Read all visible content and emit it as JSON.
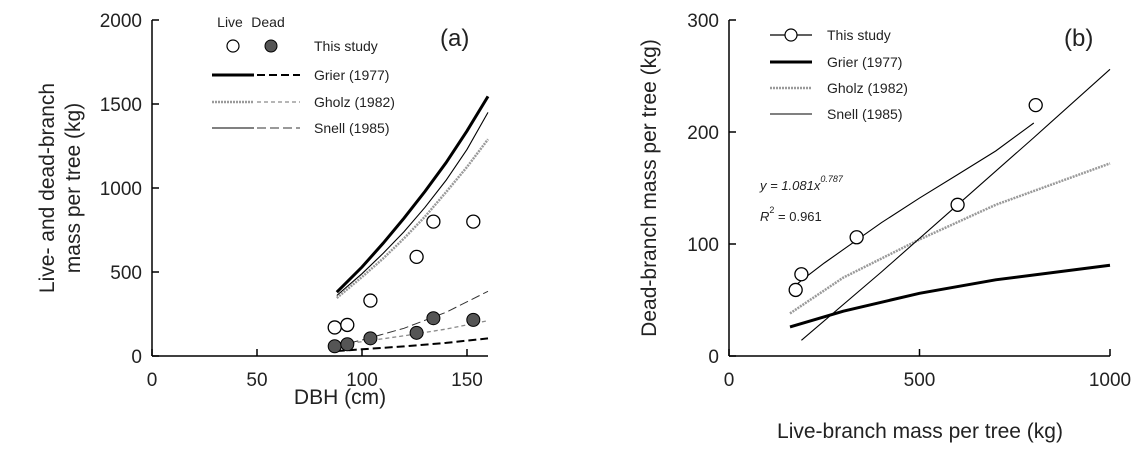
{
  "chart_data": [
    {
      "type": "scatter",
      "panel_label": "(a)",
      "xlabel": "DBH (cm)",
      "ylabel": [
        "Live- and dead-branch",
        "mass per tree (kg)"
      ],
      "xlim": [
        0,
        160
      ],
      "ylim": [
        0,
        2000
      ],
      "x_ticks": [
        "0",
        "50",
        "100",
        "150"
      ],
      "x_tick_values": [
        0,
        50,
        100,
        150
      ],
      "y_ticks": [
        "0",
        "500",
        "1000",
        "1500",
        "2000"
      ],
      "y_tick_values": [
        0,
        500,
        1000,
        1500,
        2000
      ],
      "legend": {
        "placement": "top-right",
        "col_headers": [
          "Live",
          "Dead"
        ],
        "entries": [
          {
            "label": "This study",
            "style": "markers"
          },
          {
            "label": "Grier (1977)",
            "style": "thick-solid / thick-dash"
          },
          {
            "label": "Gholz (1982)",
            "style": "dotted-gray / short-dash-gray"
          },
          {
            "label": "Snell (1985)",
            "style": "thin-solid / long-dash"
          }
        ]
      },
      "series": [
        {
          "name": "This study",
          "status": "Live",
          "marker": "open-circle",
          "x": [
            87,
            93,
            104,
            126,
            134,
            153
          ],
          "y": [
            170,
            185,
            330,
            590,
            800,
            800
          ]
        },
        {
          "name": "This study",
          "status": "Dead",
          "marker": "filled-circle",
          "x": [
            87,
            93,
            104,
            126,
            134,
            153
          ],
          "y": [
            58,
            70,
            105,
            138,
            225,
            215
          ]
        },
        {
          "name": "Grier (1977)",
          "status": "Live",
          "line": "thick-solid",
          "x": [
            88,
            100,
            110,
            120,
            130,
            140,
            150,
            160
          ],
          "y": [
            380,
            530,
            670,
            820,
            980,
            1150,
            1340,
            1545
          ]
        },
        {
          "name": "Gholz (1982)",
          "status": "Live",
          "line": "dotted-gray",
          "x": [
            88,
            100,
            110,
            120,
            130,
            140,
            150,
            160
          ],
          "y": [
            345,
            470,
            580,
            700,
            830,
            975,
            1125,
            1290
          ]
        },
        {
          "name": "Snell (1985)",
          "status": "Live",
          "line": "thin-solid",
          "x": [
            88,
            100,
            110,
            120,
            130,
            140,
            150,
            160
          ],
          "y": [
            360,
            490,
            610,
            740,
            885,
            1045,
            1230,
            1450
          ]
        },
        {
          "name": "Grier (1977)",
          "status": "Dead",
          "line": "thick-dash",
          "x": [
            88,
            100,
            120,
            140,
            160
          ],
          "y": [
            30,
            40,
            57,
            78,
            105
          ]
        },
        {
          "name": "Gholz (1982)",
          "status": "Dead",
          "line": "short-dash-gray",
          "x": [
            88,
            100,
            120,
            140,
            160
          ],
          "y": [
            65,
            85,
            120,
            160,
            210
          ]
        },
        {
          "name": "Snell (1985)",
          "status": "Dead",
          "line": "long-dash",
          "x": [
            88,
            100,
            120,
            140,
            160
          ],
          "y": [
            60,
            95,
            165,
            260,
            385
          ]
        }
      ]
    },
    {
      "type": "scatter",
      "panel_label": "(b)",
      "xlabel": "Live-branch mass per tree (kg)",
      "ylabel": [
        "Dead-branch mass per tree (kg)"
      ],
      "xlim": [
        0,
        1000
      ],
      "ylim": [
        0,
        300
      ],
      "x_ticks": [
        "0",
        "500",
        "1000"
      ],
      "x_tick_values": [
        0,
        500,
        1000
      ],
      "y_ticks": [
        "0",
        "100",
        "200",
        "300"
      ],
      "y_tick_values": [
        0,
        100,
        200,
        300
      ],
      "equation": "y = 1.081x",
      "equation_exponent": "0.787",
      "r2_label": "R",
      "r2_exponent": "2",
      "r2_value": " = 0.961",
      "legend": {
        "placement": "top-left",
        "entries": [
          {
            "label": "This study",
            "style": "line-circle"
          },
          {
            "label": "Grier (1977)",
            "style": "thick-solid"
          },
          {
            "label": "Gholz (1982)",
            "style": "dotted-gray"
          },
          {
            "label": "Snell (1985)",
            "style": "thin-solid"
          }
        ]
      },
      "series": [
        {
          "name": "This study",
          "marker": "open-circle",
          "x": [
            175,
            190,
            335,
            600,
            805
          ],
          "y": [
            59,
            73,
            106,
            135,
            224
          ]
        },
        {
          "name": "This study fit",
          "line": "thin-solid",
          "x": [
            170,
            200,
            250,
            300,
            400,
            500,
            600,
            700,
            800
          ],
          "y": [
            62,
            70,
            83,
            95,
            119,
            141,
            162,
            183,
            208
          ]
        },
        {
          "name": "Grier (1977)",
          "line": "thick-solid",
          "x": [
            160,
            300,
            500,
            700,
            1000
          ],
          "y": [
            26,
            40,
            56,
            68,
            81
          ]
        },
        {
          "name": "Gholz (1982)",
          "line": "dotted-gray",
          "x": [
            160,
            300,
            500,
            700,
            1000
          ],
          "y": [
            38,
            70,
            104,
            135,
            172
          ]
        },
        {
          "name": "Snell (1985)",
          "line": "thin-solid",
          "x": [
            190,
            400,
            600,
            800,
            1000
          ],
          "y": [
            14,
            75,
            135,
            195,
            256
          ]
        }
      ]
    }
  ]
}
